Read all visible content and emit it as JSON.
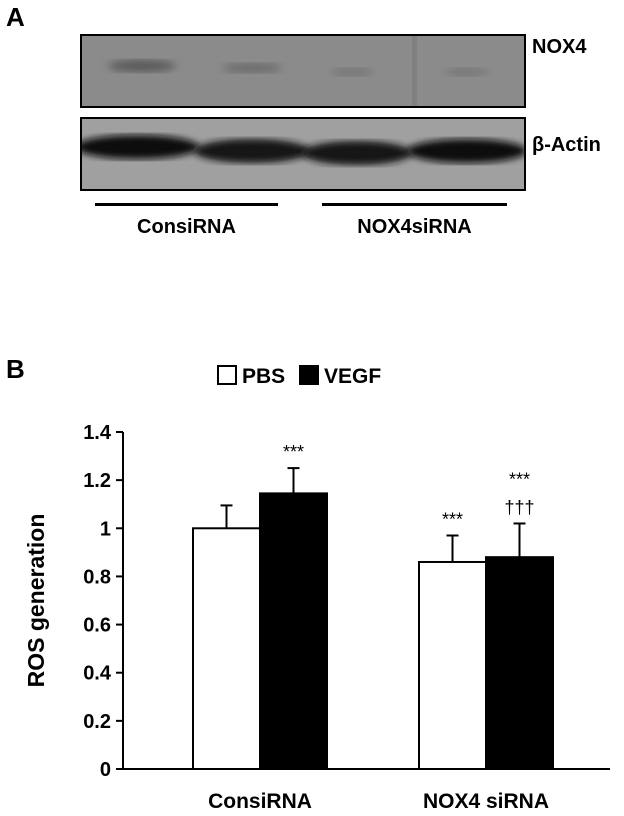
{
  "panel_a": {
    "letter": "A",
    "bands": [
      "NOX4",
      "β-Actin"
    ],
    "groups": [
      "ConsiRNA",
      "NOX4siRNA"
    ]
  },
  "panel_b": {
    "letter": "B"
  },
  "chart_data": {
    "type": "bar",
    "categories": [
      "ConsiRNA",
      "NOX4 siRNA"
    ],
    "series": [
      {
        "name": "PBS",
        "values": [
          1.0,
          0.86
        ],
        "errors": [
          0.095,
          0.11
        ],
        "color": "#ffffff"
      },
      {
        "name": "VEGF",
        "values": [
          1.145,
          0.88
        ],
        "errors": [
          0.105,
          0.14
        ],
        "color": "#000000"
      }
    ],
    "annotations": [
      {
        "category": "ConsiRNA",
        "series": "VEGF",
        "lines": [
          "***"
        ]
      },
      {
        "category": "NOX4 siRNA",
        "series": "PBS",
        "lines": [
          "***"
        ]
      },
      {
        "category": "NOX4 siRNA",
        "series": "VEGF",
        "lines": [
          "***",
          "†††"
        ]
      }
    ],
    "ylabel": "ROS generation",
    "xlabel": "",
    "ylim": [
      0,
      1.4
    ],
    "yticks": [
      "0",
      "0.2",
      "0.4",
      "0.6",
      "0.8",
      "1",
      "1.2",
      "1.4"
    ],
    "grid": false,
    "legend": "top"
  }
}
